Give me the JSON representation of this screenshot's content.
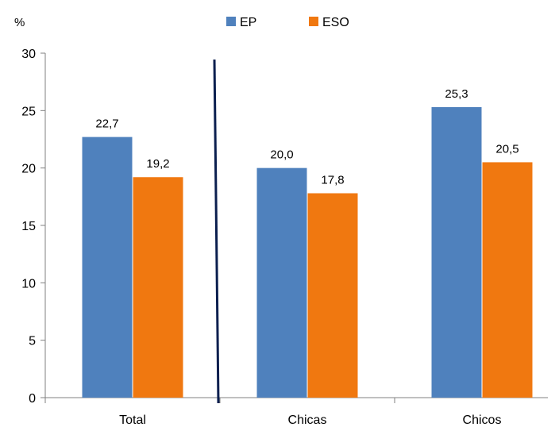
{
  "chart_data": {
    "type": "bar",
    "ylabel": "%",
    "ylim": [
      0,
      30
    ],
    "yticks": [
      0,
      5,
      10,
      15,
      20,
      25,
      30
    ],
    "categories": [
      "Total",
      "Chicas",
      "Chicos"
    ],
    "series": [
      {
        "name": "EP",
        "color": "#4F81BD",
        "values": [
          22.7,
          20.0,
          25.3
        ],
        "labels": [
          "22,7",
          "20,0",
          "25,3"
        ]
      },
      {
        "name": "ESO",
        "color": "#F07810",
        "values": [
          19.2,
          17.8,
          20.5
        ],
        "labels": [
          "19,2",
          "17,8",
          "20,5"
        ]
      }
    ],
    "legend_position": "top-center",
    "grid": false,
    "separator_color": "#0B1F4F"
  }
}
